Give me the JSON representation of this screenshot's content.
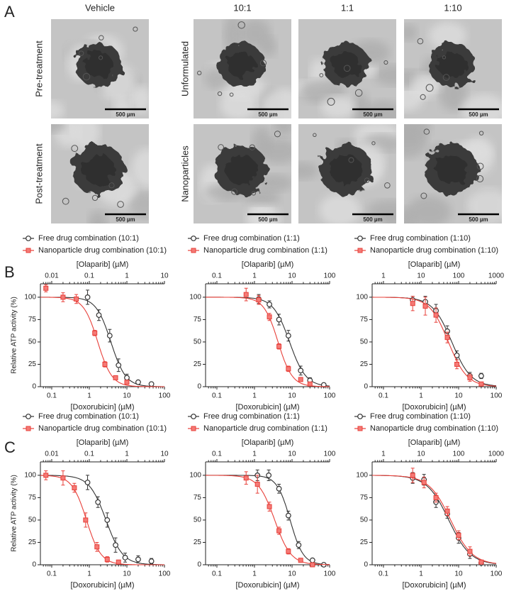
{
  "panel_a": {
    "label": "A",
    "columns": [
      "Vehicle",
      "10:1",
      "1:1",
      "1:10"
    ],
    "rows": [
      "Pre-treatment",
      "Post-treatment"
    ],
    "formulations": [
      "Unformulated",
      "Nanoparticles"
    ],
    "scale_bar": "500 µm"
  },
  "panel_b": {
    "label": "B"
  },
  "panel_c": {
    "label": "C"
  },
  "chart_data": [
    {
      "type": "dose-response",
      "ylabel": "Relative ATP activity (%)",
      "xlabel": "[Doxorubicin] (µM)",
      "x2label": "[Olaparib] (µM)",
      "xscale": "log",
      "xlim": [
        0.05,
        100
      ],
      "xticks": [
        0.1,
        1,
        10,
        100
      ],
      "x2lim": [
        0.005,
        10
      ],
      "x2ticks": [
        0.01,
        0.1,
        1,
        10
      ],
      "ylim": [
        0,
        115
      ],
      "yticks": [
        0,
        25,
        50,
        75,
        100
      ],
      "series": [
        {
          "name": "Free drug combination (10:1)",
          "color": "#333333",
          "marker": "circle",
          "x": [
            0.9,
            1.8,
            3.5,
            6,
            10,
            20,
            45
          ],
          "values": [
            100,
            80,
            57,
            24,
            10,
            5,
            3
          ],
          "errors": [
            8,
            6,
            7,
            7,
            4,
            2,
            2
          ]
        },
        {
          "name": "Nanoparticle drug combination (10:1)",
          "color": "#e8403a",
          "marker": "square",
          "x": [
            0.07,
            0.2,
            0.45,
            1.4,
            2.6,
            5,
            10
          ],
          "values": [
            110,
            100,
            98,
            60,
            25,
            10,
            5
          ],
          "errors": [
            4,
            5,
            5,
            3,
            3,
            2,
            2
          ]
        }
      ]
    },
    {
      "type": "dose-response",
      "xlabel": "[Doxorubicin] (µM)",
      "x2label": "[Olaparib] (µM)",
      "xscale": "log",
      "xlim": [
        0.05,
        100
      ],
      "xticks": [
        0.1,
        1,
        10,
        100
      ],
      "x2lim": [
        0.05,
        100
      ],
      "x2ticks": [
        0.1,
        1,
        10,
        100
      ],
      "ylim": [
        0,
        115
      ],
      "yticks": [
        0,
        25,
        50,
        75,
        100
      ],
      "series": [
        {
          "name": "Free drug combination (1:1)",
          "color": "#333333",
          "marker": "circle",
          "x": [
            1.3,
            2.5,
            4.5,
            8,
            17,
            30,
            70
          ],
          "values": [
            98,
            92,
            75,
            57,
            18,
            7,
            2
          ],
          "errors": [
            5,
            4,
            6,
            6,
            5,
            3,
            2
          ]
        },
        {
          "name": "Nanoparticle drug combination (1:1)",
          "color": "#e8403a",
          "marker": "square",
          "x": [
            0.6,
            1.3,
            2.5,
            4.5,
            8,
            17,
            30
          ],
          "values": [
            103,
            97,
            78,
            45,
            20,
            8,
            3
          ],
          "errors": [
            7,
            5,
            4,
            3,
            3,
            2,
            2
          ]
        }
      ]
    },
    {
      "type": "dose-response",
      "xlabel": "[Doxorubicin] (µM)",
      "x2label": "[Olaparib] (µM)",
      "xscale": "log",
      "xlim": [
        0.05,
        100
      ],
      "xticks": [
        0.1,
        1,
        10,
        100
      ],
      "x2lim": [
        0.5,
        1000
      ],
      "x2ticks": [
        1,
        10,
        100,
        1000
      ],
      "ylim": [
        0,
        115
      ],
      "yticks": [
        0,
        25,
        50,
        75,
        100
      ],
      "series": [
        {
          "name": "Free drug combination (1:10)",
          "color": "#333333",
          "marker": "circle",
          "x": [
            0.6,
            1.3,
            2.5,
            5,
            9,
            20,
            40
          ],
          "values": [
            97,
            95,
            85,
            62,
            35,
            12,
            12
          ],
          "errors": [
            4,
            6,
            7,
            6,
            5,
            4,
            3
          ]
        },
        {
          "name": "Nanoparticle drug combination (1:10)",
          "color": "#e8403a",
          "marker": "square",
          "x": [
            0.6,
            1.3,
            2.5,
            5,
            9,
            20,
            40
          ],
          "values": [
            93,
            90,
            80,
            55,
            25,
            10,
            3
          ],
          "errors": [
            8,
            10,
            8,
            6,
            5,
            4,
            2
          ]
        }
      ]
    },
    {
      "type": "dose-response",
      "ylabel": "Relative ATP activity (%)",
      "xlabel": "[Doxorubicin] (µM)",
      "x2label": "[Olaparib] (µM)",
      "xscale": "log",
      "xlim": [
        0.05,
        100
      ],
      "xticks": [
        0.1,
        1,
        10,
        100
      ],
      "x2lim": [
        0.005,
        10
      ],
      "x2ticks": [
        0.01,
        0.1,
        1,
        10
      ],
      "ylim": [
        0,
        115
      ],
      "yticks": [
        0,
        25,
        50,
        75,
        100
      ],
      "series": [
        {
          "name": "Free drug combination (10:1)",
          "color": "#333333",
          "marker": "circle",
          "x": [
            0.9,
            1.7,
            3,
            5,
            9,
            20,
            45
          ],
          "values": [
            92,
            70,
            50,
            22,
            8,
            6,
            4
          ],
          "errors": [
            8,
            6,
            8,
            8,
            5,
            4,
            3
          ]
        },
        {
          "name": "Nanoparticle drug combination (10:1)",
          "color": "#e8403a",
          "marker": "square",
          "x": [
            0.07,
            0.2,
            0.4,
            0.8,
            1.6,
            3,
            6
          ],
          "values": [
            100,
            97,
            86,
            50,
            20,
            6,
            3
          ],
          "errors": [
            5,
            8,
            5,
            8,
            5,
            3,
            2
          ]
        }
      ]
    },
    {
      "type": "dose-response",
      "xlabel": "[Doxorubicin] (µM)",
      "x2label": "[Olaparib] (µM)",
      "xscale": "log",
      "xlim": [
        0.05,
        100
      ],
      "xticks": [
        0.1,
        1,
        10,
        100
      ],
      "x2lim": [
        0.05,
        100
      ],
      "x2ticks": [
        0.1,
        1,
        10,
        100
      ],
      "ylim": [
        0,
        115
      ],
      "yticks": [
        0,
        25,
        50,
        75,
        100
      ],
      "series": [
        {
          "name": "Free drug combination (1:1)",
          "color": "#333333",
          "marker": "circle",
          "x": [
            1.2,
            2.4,
            4.5,
            8,
            15,
            35,
            70
          ],
          "values": [
            100,
            100,
            85,
            55,
            22,
            5,
            0
          ],
          "errors": [
            6,
            6,
            5,
            5,
            4,
            2,
            1
          ]
        },
        {
          "name": "Nanoparticle drug combination (1:1)",
          "color": "#e8403a",
          "marker": "square",
          "x": [
            0.6,
            1.2,
            2.5,
            4.5,
            8,
            17,
            35
          ],
          "values": [
            97,
            90,
            65,
            38,
            15,
            5,
            0
          ],
          "errors": [
            7,
            10,
            5,
            4,
            3,
            2,
            1
          ]
        }
      ]
    },
    {
      "type": "dose-response",
      "xlabel": "[Doxorubicin] (µM)",
      "x2label": "[Olaparib] (µM)",
      "xscale": "log",
      "xlim": [
        0.05,
        100
      ],
      "xticks": [
        0.1,
        1,
        10,
        100
      ],
      "x2lim": [
        0.5,
        1000
      ],
      "x2ticks": [
        1,
        10,
        100,
        1000
      ],
      "ylim": [
        0,
        115
      ],
      "yticks": [
        0,
        25,
        50,
        75,
        100
      ],
      "series": [
        {
          "name": "Free drug combination (1:10)",
          "color": "#333333",
          "marker": "circle",
          "x": [
            0.6,
            1.2,
            2.5,
            5,
            10,
            20,
            40
          ],
          "values": [
            97,
            95,
            70,
            57,
            30,
            12,
            2
          ],
          "errors": [
            6,
            6,
            6,
            5,
            6,
            5,
            2
          ]
        },
        {
          "name": "Nanoparticle drug combination (1:10)",
          "color": "#e8403a",
          "marker": "square",
          "x": [
            0.6,
            1.2,
            2.5,
            5,
            10,
            20,
            40
          ],
          "values": [
            100,
            92,
            75,
            60,
            33,
            15,
            3
          ],
          "errors": [
            8,
            6,
            5,
            5,
            5,
            5,
            2
          ]
        }
      ]
    }
  ]
}
